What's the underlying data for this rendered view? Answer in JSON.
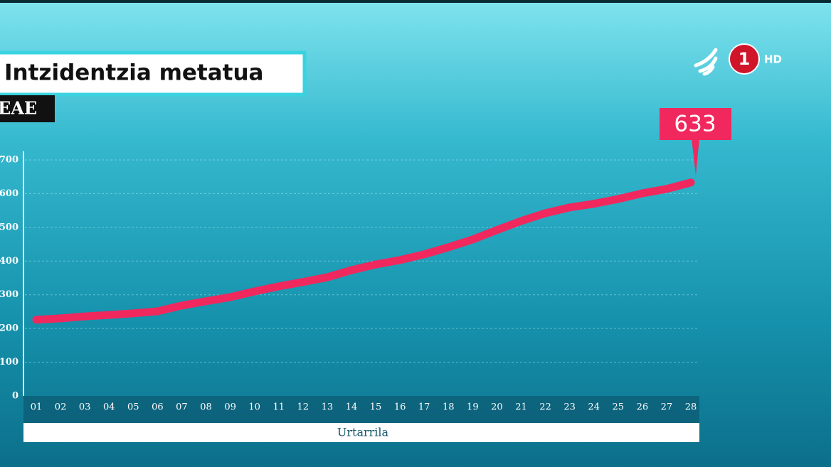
{
  "chart_data": {
    "type": "line",
    "title": "Intzidentzia metatua",
    "subtitle": "EAE",
    "x_label": "Urtarrila",
    "categories": [
      "01",
      "02",
      "03",
      "04",
      "05",
      "06",
      "07",
      "08",
      "09",
      "10",
      "11",
      "12",
      "13",
      "14",
      "15",
      "16",
      "17",
      "18",
      "19",
      "20",
      "21",
      "22",
      "23",
      "24",
      "25",
      "26",
      "27",
      "28"
    ],
    "values": [
      226,
      230,
      236,
      240,
      245,
      251,
      268,
      281,
      293,
      310,
      325,
      338,
      352,
      373,
      390,
      403,
      420,
      441,
      464,
      492,
      519,
      542,
      559,
      570,
      584,
      601,
      614,
      633
    ],
    "color": "#f0285e",
    "ylim": [
      0,
      700
    ],
    "yticks": [
      0,
      100,
      200,
      300,
      400,
      500,
      600,
      700
    ],
    "grid": true
  },
  "logo": {
    "channel": "1",
    "quality": "HD"
  }
}
